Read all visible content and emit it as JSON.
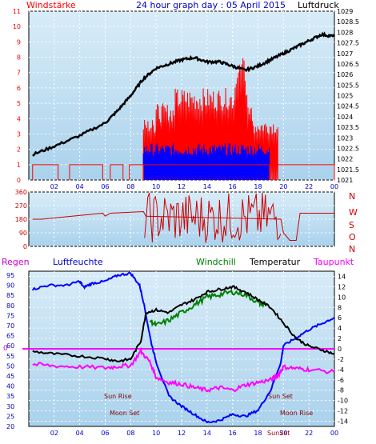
{
  "header": {
    "left_label": "Windstärke",
    "title": "24 hour graph day : 05 April 2015",
    "right_label": "Luftdruck"
  },
  "colors": {
    "panel_bg_top": "#d8ecf8",
    "panel_bg_bottom": "#aad2ec",
    "wind": "#ff0000",
    "gust": "#0000ff",
    "pressure": "#000000",
    "direction": "#cc0000",
    "humidity": "#0000ff",
    "windchill": "#008000",
    "temperature": "#000000",
    "dewpoint": "#ff00ff",
    "frame": "#000000",
    "grid": "#ffffff"
  },
  "panel3_labels": {
    "regen": "Regen",
    "luftfeuchte": "Luftfeuchte",
    "windchill": "Windchill",
    "temperatur": "Temperatur",
    "taupunkt": "Taupunkt",
    "zero_marker": "0"
  },
  "direction_letters": [
    "N",
    "W",
    "S",
    "O",
    "N"
  ],
  "annotations": {
    "sun_rise": "Sun Rise",
    "sun_set": "Sun Set",
    "moon_set": "Moon Set",
    "moon_rise": "Moon Rise",
    "sun_set_bottom": "SunSet"
  },
  "chart_data": [
    {
      "type": "bar",
      "name_hint": "wind",
      "x_ticks": [
        "02",
        "04",
        "06",
        "08",
        "10",
        "12",
        "14",
        "16",
        "18",
        "20",
        "22",
        "00"
      ],
      "xlim_hours": [
        0,
        24
      ],
      "left_axis": {
        "label": "Windstärke",
        "ylim": [
          0,
          11
        ],
        "ticks": [
          0,
          1,
          2,
          3,
          4,
          5,
          6,
          7,
          8,
          9,
          10,
          11
        ]
      },
      "right_axis": {
        "label": "Luftdruck",
        "ylim": [
          1021,
          1029
        ],
        "ticks": [
          "1021",
          "1021.5",
          "1022",
          "1022.5",
          "1023",
          "1023.5",
          "1024",
          "1024.5",
          "1025",
          "1025.5",
          "1026",
          "1026.5",
          "1027",
          "1027.5",
          "1028",
          "1028.5",
          "1029"
        ]
      },
      "wind_blocks": [
        {
          "x": [
            0.3,
            2.3
          ],
          "level": 1
        },
        {
          "x": [
            2.3,
            3.2
          ],
          "level": 0
        },
        {
          "x": [
            3.2,
            5.8
          ],
          "level": 1
        },
        {
          "x": [
            6.4,
            7.4
          ],
          "level": 1
        },
        {
          "x": [
            7.9,
            9.0
          ],
          "level": 1
        },
        {
          "x": [
            9.0,
            18.9
          ],
          "level": 1
        },
        {
          "x": [
            19.3,
            24.0
          ],
          "level": 1
        }
      ],
      "gust_blocks": [
        {
          "x": [
            9.0,
            18.9
          ],
          "level": 2
        },
        {
          "x": [
            9.6,
            18.3
          ],
          "level": 3
        },
        {
          "x": [
            9.0,
            19.6
          ],
          "level": 4
        },
        {
          "x": [
            10.0,
            17.6
          ],
          "level": 5
        },
        {
          "x": [
            11.5,
            17.2
          ],
          "level": 6
        },
        {
          "x": [
            16.2,
            17.0
          ],
          "level": 8
        }
      ],
      "pressure": {
        "x": [
          0.3,
          2,
          4,
          6,
          7,
          8,
          9,
          10,
          11,
          12,
          13,
          14,
          15,
          16,
          17,
          18,
          19,
          20,
          21,
          22,
          23,
          24
        ],
        "y": [
          1022.2,
          1022.6,
          1023.1,
          1023.7,
          1024.3,
          1025.0,
          1025.8,
          1026.3,
          1026.5,
          1026.7,
          1026.8,
          1026.6,
          1026.6,
          1026.4,
          1026.2,
          1026.4,
          1026.7,
          1027.0,
          1027.3,
          1027.6,
          1027.9,
          1027.8
        ]
      }
    },
    {
      "type": "line",
      "name_hint": "direction",
      "xlim_hours": [
        0,
        24
      ],
      "ylim": [
        0,
        360
      ],
      "ticks": [
        0,
        90,
        180,
        270,
        360
      ],
      "x": [
        0.3,
        1.0,
        5.8,
        6.0,
        6.4,
        9.0,
        9.2,
        19.8,
        20.0,
        20.5,
        21.0,
        21.3,
        24.0
      ],
      "y": [
        180,
        180,
        220,
        200,
        220,
        230,
        200,
        180,
        90,
        40,
        40,
        220,
        220
      ]
    },
    {
      "type": "line",
      "name_hint": "humidity_temp",
      "x_ticks": [
        "02",
        "04",
        "06",
        "08",
        "10",
        "12",
        "14",
        "16",
        "18",
        "20",
        "22",
        "00"
      ],
      "xlim_hours": [
        0,
        24
      ],
      "left_axis": {
        "label": "Luftfeuchte",
        "ylim": [
          20,
          97
        ],
        "ticks": [
          20,
          25,
          30,
          35,
          40,
          45,
          50,
          55,
          60,
          65,
          70,
          75,
          80,
          85,
          90,
          95
        ]
      },
      "right_axis": {
        "label": "Temperatur",
        "ylim": [
          -15,
          15
        ],
        "ticks": [
          -14,
          -12,
          -10,
          -8,
          -6,
          -4,
          -2,
          0,
          2,
          4,
          6,
          8,
          10,
          12,
          14
        ]
      },
      "humidity": {
        "x": [
          0.3,
          1.5,
          3,
          4,
          4.3,
          5,
          6,
          7,
          8,
          8.7,
          9,
          9.6,
          10,
          11,
          12,
          13,
          14,
          15,
          16,
          17,
          18,
          19,
          19.8,
          20,
          21,
          22,
          23,
          24
        ],
        "y": [
          88,
          90,
          90,
          92,
          89,
          91,
          92,
          95,
          96,
          90,
          82,
          62,
          52,
          35,
          30,
          26,
          22,
          23,
          26,
          25,
          28,
          38,
          52,
          60,
          64,
          68,
          71,
          74
        ]
      },
      "temperature": {
        "x": [
          0.3,
          2,
          4,
          6,
          7,
          8,
          8.8,
          9.2,
          10,
          11,
          12,
          13,
          14,
          15,
          16,
          17,
          18,
          19,
          20,
          21,
          22,
          23,
          24
        ],
        "y": [
          -0.5,
          -1.0,
          -1.4,
          -1.9,
          -2.4,
          -2.0,
          1.5,
          7.0,
          7.5,
          7.0,
          8.5,
          9.5,
          11.0,
          11.5,
          12.0,
          11.0,
          9.5,
          8.0,
          5.0,
          2.0,
          0.5,
          -0.2,
          -1.0
        ]
      },
      "windchill": {
        "x": [
          9.5,
          10,
          11,
          12,
          13,
          14,
          15,
          16,
          17,
          18,
          18.5
        ],
        "y": [
          5.5,
          4.5,
          5.5,
          7.0,
          8.5,
          10.0,
          10.5,
          11.0,
          10.5,
          9.0,
          8.5
        ]
      },
      "dewpoint": {
        "x": [
          0.3,
          2,
          4,
          6,
          7,
          8,
          8.8,
          9.5,
          10,
          11,
          12,
          13,
          14,
          15,
          16,
          17,
          18,
          19,
          19.6,
          20,
          21,
          22,
          24
        ],
        "y": [
          -3.0,
          -3.3,
          -3.5,
          -3.7,
          -3.4,
          -3.2,
          -0.5,
          -2.5,
          -5.5,
          -6.5,
          -6.8,
          -7.5,
          -8.0,
          -7.5,
          -8.0,
          -7.0,
          -6.5,
          -6.0,
          -5.0,
          -3.5,
          -3.8,
          -4.0,
          -4.5
        ]
      },
      "zero_line_value": 0
    }
  ]
}
